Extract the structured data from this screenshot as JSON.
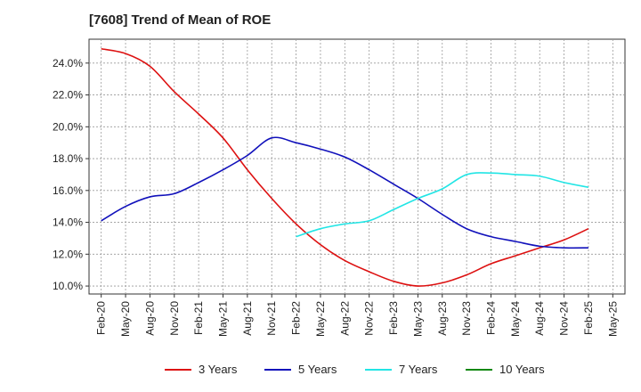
{
  "chart_data": {
    "type": "line",
    "title": "[7608]  Trend of Mean of ROE",
    "xlabel": "",
    "ylabel": "",
    "ylim": [
      9.5,
      25.5
    ],
    "yticks": [
      10,
      12,
      14,
      16,
      18,
      20,
      22,
      24
    ],
    "ytick_labels": [
      "10.0%",
      "12.0%",
      "14.0%",
      "16.0%",
      "18.0%",
      "20.0%",
      "22.0%",
      "24.0%"
    ],
    "xtick_labels": [
      "Feb-20",
      "May-20",
      "Aug-20",
      "Nov-20",
      "Feb-21",
      "May-21",
      "Aug-21",
      "Nov-21",
      "Feb-22",
      "May-22",
      "Aug-22",
      "Nov-22",
      "Feb-23",
      "May-23",
      "Aug-23",
      "Nov-23",
      "Feb-24",
      "May-24",
      "Aug-24",
      "Nov-24",
      "Feb-25",
      "May-25"
    ],
    "grid": true,
    "legend_position": "bottom",
    "series": [
      {
        "name": "3 Years",
        "color": "#dd1111",
        "x": [
          "Feb-20",
          "May-20",
          "Aug-20",
          "Nov-20",
          "Feb-21",
          "May-21",
          "Aug-21",
          "Nov-21",
          "Feb-22",
          "May-22",
          "Aug-22",
          "Nov-22",
          "Feb-23",
          "May-23",
          "Aug-23",
          "Nov-23",
          "Feb-24",
          "May-24",
          "Aug-24",
          "Nov-24",
          "Feb-25"
        ],
        "values": [
          24.9,
          24.6,
          23.8,
          22.2,
          20.8,
          19.3,
          17.3,
          15.5,
          13.9,
          12.6,
          11.6,
          10.9,
          10.3,
          10.0,
          10.2,
          10.7,
          11.4,
          11.9,
          12.4,
          12.9,
          13.6
        ]
      },
      {
        "name": "5 Years",
        "color": "#1111bb",
        "x": [
          "Feb-20",
          "May-20",
          "Aug-20",
          "Nov-20",
          "Feb-21",
          "May-21",
          "Aug-21",
          "Nov-21",
          "Feb-22",
          "May-22",
          "Aug-22",
          "Nov-22",
          "Feb-23",
          "May-23",
          "Aug-23",
          "Nov-23",
          "Feb-24",
          "May-24",
          "Aug-24",
          "Nov-24",
          "Feb-25"
        ],
        "values": [
          14.1,
          15.0,
          15.6,
          15.8,
          16.5,
          17.3,
          18.2,
          19.3,
          19.0,
          18.6,
          18.1,
          17.3,
          16.4,
          15.5,
          14.5,
          13.6,
          13.1,
          12.8,
          12.5,
          12.4,
          12.4
        ]
      },
      {
        "name": "7 Years",
        "color": "#22e5e5",
        "x": [
          "Feb-22",
          "May-22",
          "Aug-22",
          "Nov-22",
          "Feb-23",
          "May-23",
          "Aug-23",
          "Nov-23",
          "Feb-24",
          "May-24",
          "Aug-24",
          "Nov-24",
          "Feb-25"
        ],
        "values": [
          13.1,
          13.6,
          13.9,
          14.1,
          14.8,
          15.5,
          16.1,
          17.0,
          17.1,
          17.0,
          16.9,
          16.5,
          16.2
        ]
      },
      {
        "name": "10 Years",
        "color": "#118811",
        "x": [],
        "values": []
      }
    ]
  }
}
